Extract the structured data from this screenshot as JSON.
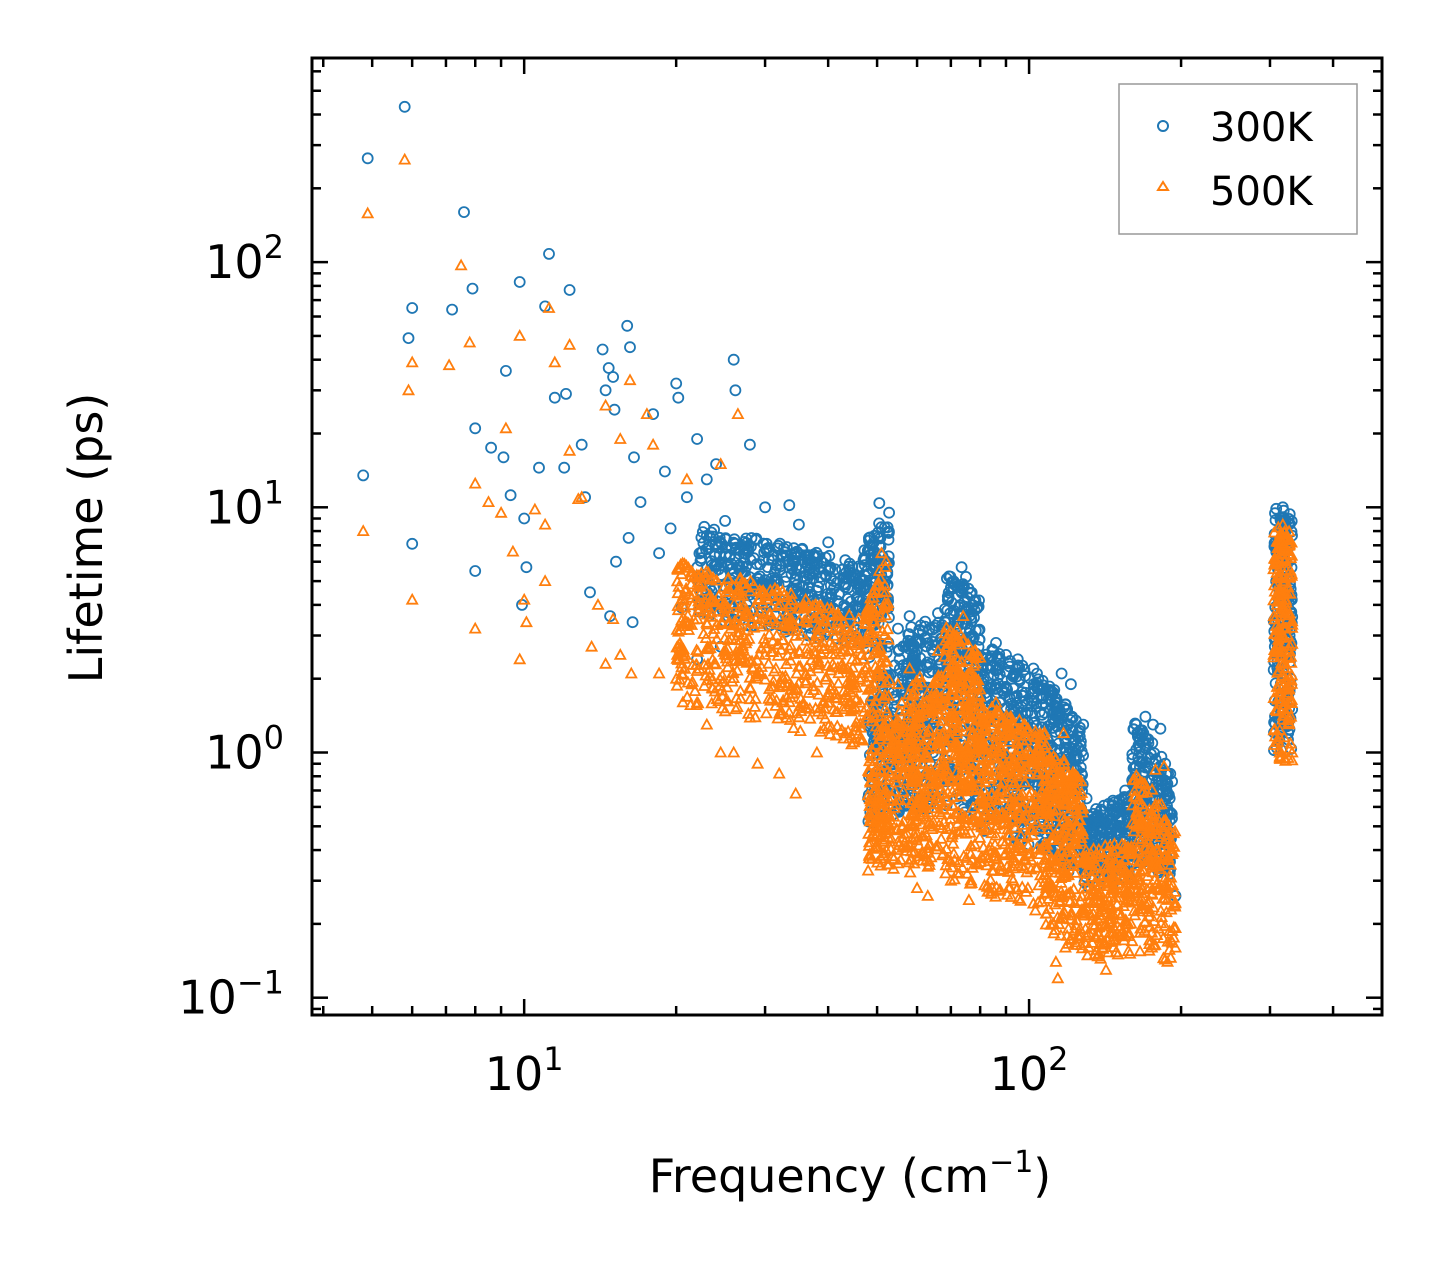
{
  "chart_data": {
    "type": "scatter",
    "title": "",
    "xlabel": "Frequency (cm",
    "xlabel_sup": "−1",
    "xlabel_close": ")",
    "ylabel": "Lifetime (ps)",
    "xscale": "log",
    "yscale": "log",
    "xlim": [
      3.8,
      500
    ],
    "ylim": [
      0.085,
      680
    ],
    "x_ticks": [
      {
        "value": 10,
        "base": "10",
        "exp": "1"
      },
      {
        "value": 100,
        "base": "10",
        "exp": "2"
      }
    ],
    "y_ticks": [
      {
        "value": 0.1,
        "base": "10",
        "exp": "−1"
      },
      {
        "value": 1,
        "base": "10",
        "exp": "0"
      },
      {
        "value": 10,
        "base": "10",
        "exp": "1"
      },
      {
        "value": 100,
        "base": "10",
        "exp": "2"
      }
    ],
    "legend_position": "top-right",
    "series": [
      {
        "name": "300K",
        "marker": "circle",
        "color": "#1f77b4",
        "points": [
          [
            5.8,
            430
          ],
          [
            4.9,
            265
          ],
          [
            7.6,
            160
          ],
          [
            11.2,
            108
          ],
          [
            9.8,
            83
          ],
          [
            7.9,
            78
          ],
          [
            12.3,
            77
          ],
          [
            11.0,
            66
          ],
          [
            6.0,
            65
          ],
          [
            7.2,
            64
          ],
          [
            16.0,
            55
          ],
          [
            5.9,
            49
          ],
          [
            14.3,
            44
          ],
          [
            16.2,
            45
          ],
          [
            26.0,
            40
          ],
          [
            14.7,
            37
          ],
          [
            9.2,
            36
          ],
          [
            15.0,
            34
          ],
          [
            20.0,
            32
          ],
          [
            14.5,
            30
          ],
          [
            26.2,
            30
          ],
          [
            11.5,
            28
          ],
          [
            12.1,
            29
          ],
          [
            20.2,
            28
          ],
          [
            15.1,
            25
          ],
          [
            18.0,
            24
          ],
          [
            22.0,
            19
          ],
          [
            28.0,
            18
          ],
          [
            8.0,
            21
          ],
          [
            13.0,
            18
          ],
          [
            16.5,
            16
          ],
          [
            24.0,
            15
          ],
          [
            8.6,
            17.5
          ],
          [
            4.8,
            13.5
          ],
          [
            9.1,
            16.0
          ],
          [
            10.7,
            14.5
          ],
          [
            12.0,
            14.5
          ],
          [
            19.0,
            14
          ],
          [
            23.0,
            13
          ],
          [
            9.4,
            11.2
          ],
          [
            13.2,
            11
          ],
          [
            17.0,
            10.5
          ],
          [
            21.0,
            11
          ],
          [
            30.0,
            10
          ],
          [
            33.5,
            10.2
          ],
          [
            35.0,
            8.5
          ],
          [
            10.0,
            9.0
          ],
          [
            6.0,
            7.1
          ],
          [
            16.1,
            7.5
          ],
          [
            19.5,
            8.2
          ],
          [
            25.0,
            8.8
          ],
          [
            40.0,
            7.2
          ],
          [
            8.0,
            5.5
          ],
          [
            10.1,
            5.7
          ],
          [
            15.2,
            6.0
          ],
          [
            18.5,
            6.5
          ],
          [
            28.5,
            6.2
          ],
          [
            9.9,
            4.0
          ],
          [
            13.5,
            4.5
          ],
          [
            14.8,
            3.6
          ],
          [
            16.4,
            3.4
          ],
          [
            20.5,
            3.9
          ],
          [
            22.0,
            2.4
          ],
          [
            24.5,
            2.7
          ],
          [
            45.0,
            5.3
          ],
          [
            47.0,
            6.1
          ],
          [
            50.5,
            10.4
          ],
          [
            51.0,
            8.3
          ],
          [
            52.0,
            6.0
          ],
          [
            55.0,
            3.2
          ],
          [
            58.0,
            3.6
          ],
          [
            61.0,
            3.3
          ],
          [
            66.0,
            3.7
          ],
          [
            70.0,
            4.7
          ],
          [
            73.5,
            5.7
          ],
          [
            75.0,
            5.2
          ],
          [
            79.0,
            3.9
          ],
          [
            86.0,
            2.8
          ],
          [
            90.0,
            2.5
          ],
          [
            95.0,
            2.4
          ],
          [
            102.0,
            2.2
          ],
          [
            110.0,
            1.8
          ],
          [
            116.0,
            2.1
          ],
          [
            121.0,
            1.9
          ],
          [
            128.0,
            1.3
          ],
          [
            137.0,
            0.55
          ],
          [
            145.0,
            0.45
          ],
          [
            155.0,
            0.7
          ],
          [
            163.0,
            1.3
          ],
          [
            170.0,
            1.4
          ],
          [
            176.0,
            1.3
          ],
          [
            182.0,
            1.25
          ],
          [
            186.0,
            0.9
          ],
          [
            190.0,
            0.32
          ],
          [
            195.0,
            0.26
          ],
          [
            48.0,
            0.65
          ],
          [
            49.0,
            0.55
          ],
          [
            55.5,
            1.2
          ],
          [
            60.0,
            0.8
          ],
          [
            64.5,
            1.0
          ],
          [
            68.0,
            0.9
          ],
          [
            85.0,
            0.6
          ],
          [
            100.0,
            0.75
          ],
          [
            113.0,
            0.4
          ],
          [
            130.0,
            0.65
          ],
          [
            310.0,
            6.5
          ],
          [
            312.0,
            5.0
          ],
          [
            318.0,
            10.0
          ],
          [
            320.0,
            8.0
          ],
          [
            322.0,
            6.0
          ],
          [
            325.0,
            4.5
          ],
          [
            328.0,
            3.0
          ],
          [
            330.0,
            2.0
          ],
          [
            332.0,
            1.5
          ],
          [
            326.0,
            1.2
          ]
        ],
        "bands": [
          {
            "f": [
              22,
              47
            ],
            "lo": [
              3.5,
              2.7
            ],
            "hi": [
              8.5,
              5.8
            ],
            "n": 460
          },
          {
            "f": [
              47,
              53
            ],
            "lo": [
              2.5,
              2.2
            ],
            "hi": [
              7.0,
              10.3
            ],
            "n": 120
          },
          {
            "f": [
              48,
              60
            ],
            "lo": [
              0.5,
              0.6
            ],
            "hi": [
              1.6,
              3.4
            ],
            "n": 220
          },
          {
            "f": [
              58,
              68
            ],
            "lo": [
              0.55,
              0.6
            ],
            "hi": [
              3.3,
              3.6
            ],
            "n": 180
          },
          {
            "f": [
              68,
              80
            ],
            "lo": [
              0.6,
              0.5
            ],
            "hi": [
              5.6,
              4.2
            ],
            "n": 240
          },
          {
            "f": [
              80,
              108
            ],
            "lo": [
              0.45,
              0.4
            ],
            "hi": [
              2.8,
              2.0
            ],
            "n": 340
          },
          {
            "f": [
              108,
              128
            ],
            "lo": [
              0.35,
              0.3
            ],
            "hi": [
              2.0,
              1.2
            ],
            "n": 230
          },
          {
            "f": [
              128,
              160
            ],
            "lo": [
              0.28,
              0.3
            ],
            "hi": [
              0.55,
              0.7
            ],
            "n": 220
          },
          {
            "f": [
              160,
              192
            ],
            "lo": [
              0.35,
              0.3
            ],
            "hi": [
              1.4,
              0.8
            ],
            "n": 220
          },
          {
            "f": [
              305,
              332
            ],
            "lo": [
              1.0,
              1.0
            ],
            "hi": [
              10.0,
              9.5
            ],
            "n": 200
          }
        ]
      },
      {
        "name": "500K",
        "marker": "triangle",
        "color": "#ff7f0e",
        "points": [
          [
            5.8,
            262
          ],
          [
            4.9,
            158
          ],
          [
            7.5,
            97
          ],
          [
            11.2,
            65
          ],
          [
            9.8,
            50
          ],
          [
            12.3,
            46
          ],
          [
            7.8,
            47
          ],
          [
            11.5,
            39
          ],
          [
            7.1,
            38
          ],
          [
            6.0,
            39
          ],
          [
            16.2,
            33
          ],
          [
            5.9,
            30
          ],
          [
            14.5,
            26
          ],
          [
            17.5,
            24
          ],
          [
            26.5,
            24
          ],
          [
            15.5,
            19
          ],
          [
            9.2,
            21
          ],
          [
            12.3,
            17
          ],
          [
            18.0,
            18
          ],
          [
            13.0,
            11
          ],
          [
            21.0,
            13
          ],
          [
            24.5,
            15
          ],
          [
            8.0,
            12.5
          ],
          [
            8.5,
            10.5
          ],
          [
            9.0,
            9.5
          ],
          [
            10.5,
            9.8
          ],
          [
            12.8,
            10.8
          ],
          [
            11.0,
            8.5
          ],
          [
            4.8,
            8.0
          ],
          [
            9.5,
            6.6
          ],
          [
            11.0,
            5.0
          ],
          [
            10.0,
            4.2
          ],
          [
            6.0,
            4.2
          ],
          [
            8.0,
            3.2
          ],
          [
            10.1,
            3.4
          ],
          [
            9.8,
            2.4
          ],
          [
            14.0,
            4.0
          ],
          [
            15.0,
            3.5
          ],
          [
            13.6,
            2.7
          ],
          [
            14.5,
            2.3
          ],
          [
            15.5,
            2.5
          ],
          [
            16.3,
            2.1
          ],
          [
            18.5,
            2.1
          ],
          [
            20.0,
            2.0
          ],
          [
            22.0,
            1.6
          ],
          [
            23.0,
            1.3
          ],
          [
            24.5,
            1.0
          ],
          [
            26.0,
            1.0
          ],
          [
            29.0,
            0.9
          ],
          [
            32.0,
            0.82
          ],
          [
            34.5,
            0.68
          ],
          [
            38.0,
            1.0
          ],
          [
            45.0,
            1.1
          ],
          [
            41.0,
            1.5
          ],
          [
            48.0,
            1.8
          ],
          [
            52.0,
            4.5
          ],
          [
            51.0,
            6.5
          ],
          [
            50.5,
            5.5
          ],
          [
            55.0,
            1.9
          ],
          [
            58.0,
            2.2
          ],
          [
            62.0,
            1.5
          ],
          [
            66.0,
            2.6
          ],
          [
            72.0,
            3.2
          ],
          [
            74.0,
            3.6
          ],
          [
            79.0,
            2.5
          ],
          [
            86.0,
            1.6
          ],
          [
            92.0,
            1.4
          ],
          [
            98.0,
            1.3
          ],
          [
            105.0,
            1.1
          ],
          [
            110.0,
            0.95
          ],
          [
            117.0,
            1.2
          ],
          [
            122.0,
            0.8
          ],
          [
            48.0,
            0.33
          ],
          [
            52.5,
            0.35
          ],
          [
            60.0,
            0.28
          ],
          [
            63.0,
            0.26
          ],
          [
            70.0,
            0.3
          ],
          [
            76.0,
            0.25
          ],
          [
            84.0,
            0.27
          ],
          [
            93.0,
            0.3
          ],
          [
            108.0,
            0.22
          ],
          [
            113.0,
            0.14
          ],
          [
            114.0,
            0.12
          ],
          [
            118.0,
            0.16
          ],
          [
            125.0,
            0.18
          ],
          [
            135.0,
            0.15
          ],
          [
            142.0,
            0.13
          ],
          [
            150.0,
            0.15
          ],
          [
            160.0,
            0.17
          ],
          [
            175.0,
            0.16
          ],
          [
            188.0,
            0.14
          ],
          [
            195.0,
            0.16
          ],
          [
            185.0,
            0.88
          ],
          [
            178.0,
            0.85
          ],
          [
            310.0,
            4.0
          ],
          [
            312.0,
            3.0
          ],
          [
            318.0,
            8.5
          ],
          [
            320.0,
            7.0
          ],
          [
            322.0,
            5.0
          ],
          [
            325.0,
            3.5
          ],
          [
            328.0,
            2.0
          ],
          [
            330.0,
            1.4
          ],
          [
            332.0,
            1.0
          ],
          [
            326.0,
            0.95
          ]
        ],
        "bands": [
          {
            "f": [
              20,
              47
            ],
            "lo": [
              1.6,
              1.0
            ],
            "hi": [
              6.0,
              3.5
            ],
            "n": 620
          },
          {
            "f": [
              47,
              53
            ],
            "lo": [
              1.2,
              1.2
            ],
            "hi": [
              3.5,
              6.5
            ],
            "n": 110
          },
          {
            "f": [
              48,
              60
            ],
            "lo": [
              0.3,
              0.35
            ],
            "hi": [
              1.0,
              1.9
            ],
            "n": 260
          },
          {
            "f": [
              58,
              68
            ],
            "lo": [
              0.3,
              0.35
            ],
            "hi": [
              2.0,
              2.1
            ],
            "n": 220
          },
          {
            "f": [
              68,
              80
            ],
            "lo": [
              0.3,
              0.28
            ],
            "hi": [
              3.5,
              2.5
            ],
            "n": 300
          },
          {
            "f": [
              80,
              108
            ],
            "lo": [
              0.26,
              0.22
            ],
            "hi": [
              1.6,
              1.2
            ],
            "n": 400
          },
          {
            "f": [
              108,
              128
            ],
            "lo": [
              0.18,
              0.15
            ],
            "hi": [
              1.1,
              0.75
            ],
            "n": 260
          },
          {
            "f": [
              128,
              160
            ],
            "lo": [
              0.14,
              0.15
            ],
            "hi": [
              0.4,
              0.45
            ],
            "n": 230
          },
          {
            "f": [
              160,
              195
            ],
            "lo": [
              0.15,
              0.14
            ],
            "hi": [
              0.85,
              0.55
            ],
            "n": 230
          },
          {
            "f": [
              305,
              332
            ],
            "lo": [
              0.95,
              0.9
            ],
            "hi": [
              8.5,
              8.0
            ],
            "n": 200
          }
        ]
      }
    ]
  }
}
